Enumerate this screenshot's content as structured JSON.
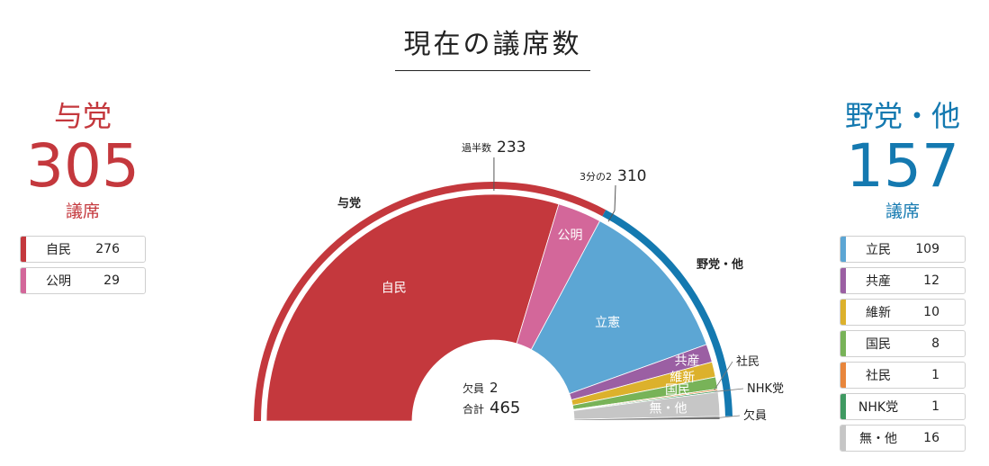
{
  "title": "現在の議席数",
  "ruling": {
    "name": "与党",
    "seats": "305",
    "unit": "議席"
  },
  "opposition": {
    "name": "野党・他",
    "seats": "157",
    "unit": "議席"
  },
  "chart_data": {
    "type": "pie",
    "title": "現在の議席数",
    "total_label": "合計",
    "total": 465,
    "vacant_label": "欠員",
    "vacant": 2,
    "majority_label": "過半数",
    "majority": 233,
    "two_thirds_label": "3分の2",
    "two_thirds": 310,
    "ruling_label": "与党",
    "opposition_label": "野党・他",
    "slices": [
      {
        "name": "自民",
        "value": 276,
        "color": "#c4383d",
        "group": "ruling"
      },
      {
        "name": "公明",
        "value": 29,
        "color": "#d3679a",
        "group": "ruling"
      },
      {
        "name": "立憲",
        "value": 109,
        "color": "#5ca6d4",
        "group": "opposition"
      },
      {
        "name": "共産",
        "value": 12,
        "color": "#9b5fa3",
        "group": "opposition"
      },
      {
        "name": "維新",
        "value": 10,
        "color": "#dcb12c",
        "group": "opposition"
      },
      {
        "name": "国民",
        "value": 8,
        "color": "#78b358",
        "group": "opposition"
      },
      {
        "name": "社民",
        "value": 1,
        "color": "#e8863c",
        "group": "opposition"
      },
      {
        "name": "NHK党",
        "value": 1,
        "color": "#3f9a62",
        "group": "opposition"
      },
      {
        "name": "無・他",
        "value": 16,
        "color": "#c6c6c6",
        "group": "opposition"
      },
      {
        "name": "欠員",
        "value": 2,
        "color": "#777777",
        "group": "vacant"
      }
    ],
    "arc_labels": [
      "自民",
      "公明",
      "立憲",
      "共産",
      "維新",
      "国民",
      "無・他"
    ],
    "callout_labels": [
      "社民",
      "NHK党",
      "欠員"
    ],
    "colors": {
      "ruling": "#c4383d",
      "opposition": "#1479b0"
    }
  },
  "legend": {
    "ruling": [
      {
        "name": "自民",
        "value": "276",
        "color": "#c4383d"
      },
      {
        "name": "公明",
        "value": "29",
        "color": "#d3679a"
      }
    ],
    "opposition": [
      {
        "name": "立民",
        "value": "109",
        "color": "#5ca6d4"
      },
      {
        "name": "共産",
        "value": "12",
        "color": "#9b5fa3"
      },
      {
        "name": "維新",
        "value": "10",
        "color": "#dcb12c"
      },
      {
        "name": "国民",
        "value": "8",
        "color": "#78b358"
      },
      {
        "name": "社民",
        "value": "1",
        "color": "#e8863c"
      },
      {
        "name": "NHK党",
        "value": "1",
        "color": "#3f9a62"
      },
      {
        "name": "無・他",
        "value": "16",
        "color": "#c6c6c6"
      }
    ]
  }
}
